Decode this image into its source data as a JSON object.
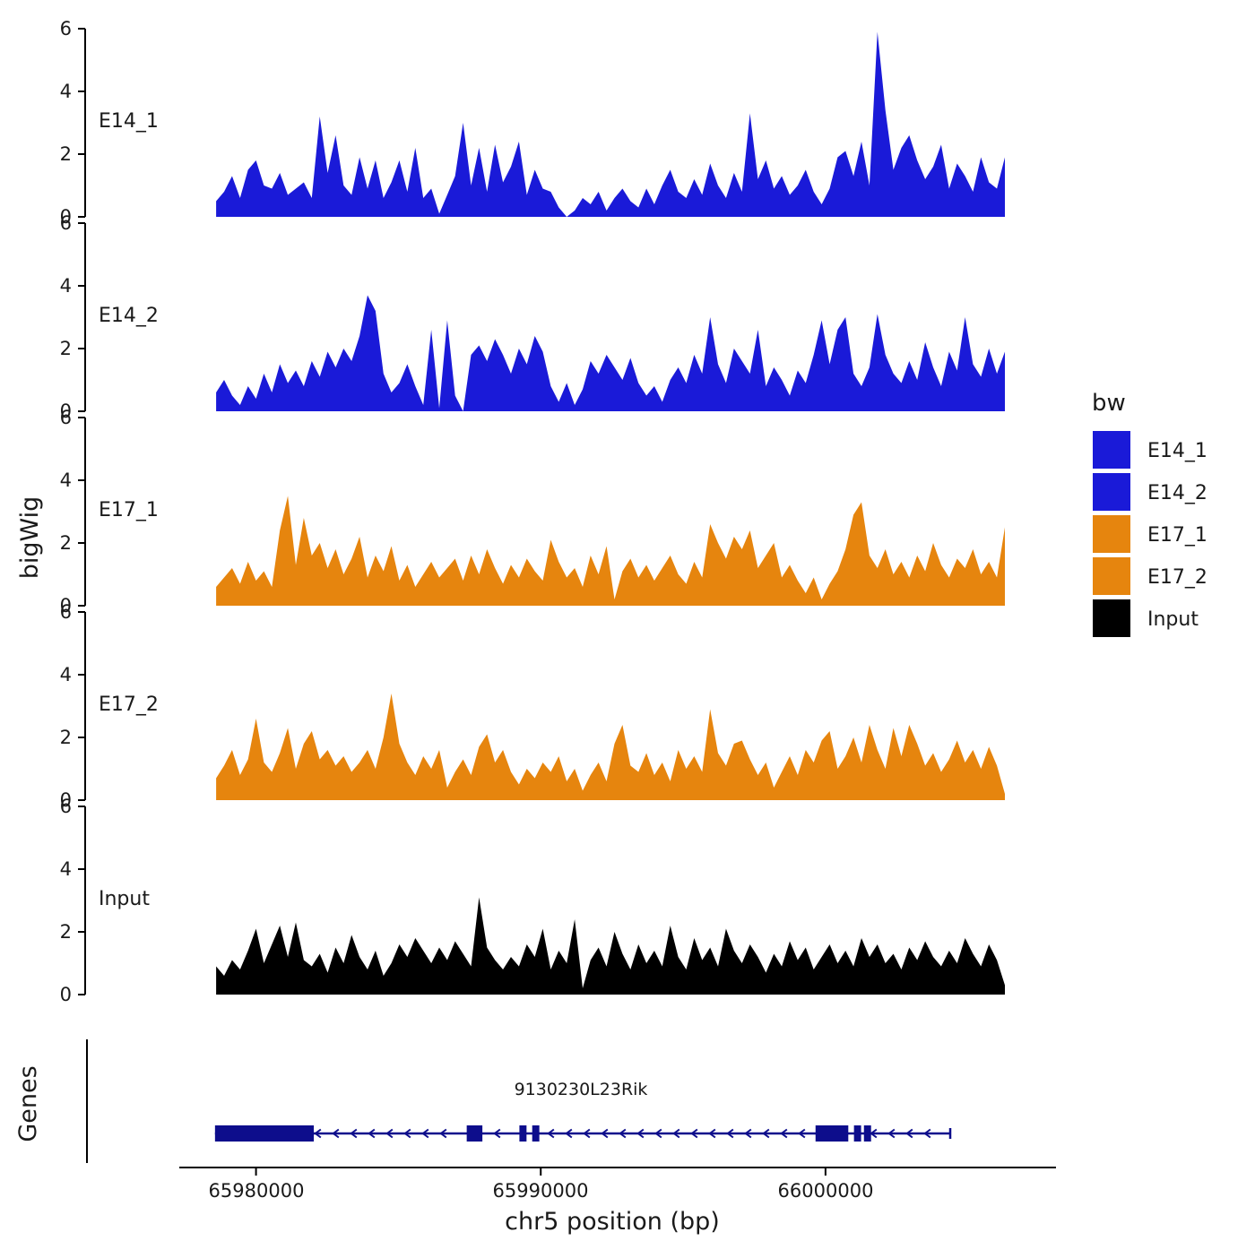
{
  "figure": {
    "background": "#ffffff"
  },
  "chart_data": {
    "type": "area",
    "title": "",
    "ylabel": "bigWig",
    "xlabel": "chr5 position (bp)",
    "ylim": [
      0,
      6
    ],
    "yticks": [
      0,
      2,
      4,
      6
    ],
    "x_range": [
      65974000,
      66008000
    ],
    "data_range": [
      65978600,
      66006300
    ],
    "grid": false,
    "x_axis": {
      "ticks": [
        65980000,
        65990000,
        66000000
      ],
      "tick_labels": [
        "65980000",
        "65990000",
        "66000000"
      ]
    },
    "legend": {
      "title": "bw",
      "position": "right",
      "entries": [
        {
          "label": "E14_1",
          "color": "#1a1ad8"
        },
        {
          "label": "E14_2",
          "color": "#1a1ad8"
        },
        {
          "label": "E17_1",
          "color": "#e6850e"
        },
        {
          "label": "E17_2",
          "color": "#e6850e"
        },
        {
          "label": "Input",
          "color": "#000000"
        }
      ]
    },
    "tracks": [
      {
        "name": "E14_1",
        "color": "#1a1ad8",
        "values": [
          0.5,
          0.8,
          1.3,
          0.6,
          1.5,
          1.8,
          1.0,
          0.9,
          1.4,
          0.7,
          0.9,
          1.1,
          0.6,
          3.2,
          1.4,
          2.6,
          1.0,
          0.7,
          1.9,
          0.9,
          1.8,
          0.6,
          1.1,
          1.8,
          0.8,
          2.2,
          0.6,
          0.9,
          0.1,
          0.7,
          1.3,
          3.0,
          1.0,
          2.2,
          0.8,
          2.3,
          1.1,
          1.6,
          2.4,
          0.7,
          1.5,
          0.9,
          0.8,
          0.3,
          0.0,
          0.2,
          0.6,
          0.4,
          0.8,
          0.2,
          0.6,
          0.9,
          0.5,
          0.3,
          0.9,
          0.4,
          1.0,
          1.5,
          0.8,
          0.6,
          1.2,
          0.7,
          1.7,
          1.0,
          0.6,
          1.4,
          0.8,
          3.3,
          1.2,
          1.8,
          0.9,
          1.3,
          0.7,
          1.0,
          1.5,
          0.8,
          0.4,
          0.9,
          1.9,
          2.1,
          1.3,
          2.4,
          1.0,
          5.9,
          3.4,
          1.5,
          2.2,
          2.6,
          1.8,
          1.2,
          1.6,
          2.3,
          0.9,
          1.7,
          1.3,
          0.8,
          1.9,
          1.1,
          0.9,
          1.9
        ]
      },
      {
        "name": "E14_2",
        "color": "#1a1ad8",
        "values": [
          0.6,
          1.0,
          0.5,
          0.2,
          0.8,
          0.4,
          1.2,
          0.6,
          1.5,
          0.9,
          1.3,
          0.8,
          1.6,
          1.1,
          1.9,
          1.4,
          2.0,
          1.6,
          2.4,
          3.7,
          3.2,
          1.2,
          0.6,
          0.9,
          1.5,
          0.8,
          0.2,
          2.6,
          0.1,
          2.9,
          0.5,
          0.0,
          1.8,
          2.1,
          1.6,
          2.3,
          1.8,
          1.2,
          2.0,
          1.5,
          2.4,
          1.9,
          0.8,
          0.3,
          0.9,
          0.2,
          0.7,
          1.6,
          1.2,
          1.8,
          1.4,
          1.0,
          1.7,
          0.9,
          0.5,
          0.8,
          0.3,
          1.0,
          1.4,
          0.9,
          1.8,
          1.2,
          3.0,
          1.5,
          0.9,
          2.0,
          1.6,
          1.2,
          2.6,
          0.8,
          1.4,
          1.0,
          0.5,
          1.3,
          0.9,
          1.8,
          2.9,
          1.5,
          2.6,
          3.0,
          1.2,
          0.8,
          1.4,
          3.1,
          1.8,
          1.2,
          0.9,
          1.6,
          1.0,
          2.2,
          1.4,
          0.8,
          1.9,
          1.3,
          3.0,
          1.5,
          1.1,
          2.0,
          1.2,
          1.9
        ]
      },
      {
        "name": "E17_1",
        "color": "#e6850e",
        "values": [
          0.6,
          0.9,
          1.2,
          0.7,
          1.4,
          0.8,
          1.1,
          0.6,
          2.4,
          3.5,
          1.3,
          2.8,
          1.6,
          2.0,
          1.2,
          1.8,
          1.0,
          1.5,
          2.2,
          0.9,
          1.6,
          1.1,
          1.9,
          0.8,
          1.3,
          0.6,
          1.0,
          1.4,
          0.9,
          1.2,
          1.5,
          0.8,
          1.6,
          1.0,
          1.8,
          1.2,
          0.7,
          1.3,
          0.9,
          1.5,
          1.1,
          0.8,
          2.1,
          1.4,
          0.9,
          1.2,
          0.6,
          1.6,
          1.0,
          1.9,
          0.2,
          1.1,
          1.5,
          0.9,
          1.3,
          0.8,
          1.2,
          1.6,
          1.0,
          0.7,
          1.4,
          0.9,
          2.6,
          2.0,
          1.5,
          2.2,
          1.8,
          2.4,
          1.2,
          1.6,
          2.0,
          0.9,
          1.3,
          0.8,
          0.4,
          0.9,
          0.2,
          0.7,
          1.1,
          1.8,
          2.9,
          3.3,
          1.6,
          1.2,
          1.8,
          1.0,
          1.4,
          0.9,
          1.6,
          1.1,
          2.0,
          1.3,
          0.9,
          1.5,
          1.2,
          1.8,
          1.0,
          1.4,
          0.9,
          2.5
        ]
      },
      {
        "name": "E17_2",
        "color": "#e6850e",
        "values": [
          0.7,
          1.1,
          1.6,
          0.8,
          1.3,
          2.6,
          1.2,
          0.9,
          1.5,
          2.3,
          1.0,
          1.8,
          2.2,
          1.3,
          1.6,
          1.1,
          1.4,
          0.9,
          1.2,
          1.6,
          1.0,
          2.0,
          3.4,
          1.8,
          1.2,
          0.8,
          1.4,
          1.0,
          1.6,
          0.4,
          0.9,
          1.3,
          0.8,
          1.7,
          2.1,
          1.2,
          1.6,
          0.9,
          0.5,
          1.0,
          0.7,
          1.2,
          0.9,
          1.4,
          0.6,
          1.0,
          0.3,
          0.8,
          1.2,
          0.6,
          1.8,
          2.4,
          1.1,
          0.9,
          1.5,
          0.8,
          1.2,
          0.6,
          1.6,
          1.0,
          1.4,
          0.9,
          2.9,
          1.5,
          1.1,
          1.8,
          1.9,
          1.3,
          0.8,
          1.2,
          0.4,
          0.9,
          1.4,
          0.8,
          1.6,
          1.2,
          1.9,
          2.2,
          1.0,
          1.4,
          2.0,
          1.2,
          2.4,
          1.6,
          1.0,
          2.3,
          1.4,
          2.4,
          1.8,
          1.1,
          1.5,
          0.9,
          1.3,
          1.9,
          1.2,
          1.6,
          1.0,
          1.7,
          1.1,
          0.2
        ]
      },
      {
        "name": "Input",
        "color": "#000000",
        "values": [
          0.9,
          0.6,
          1.1,
          0.8,
          1.4,
          2.1,
          1.0,
          1.6,
          2.2,
          1.2,
          2.3,
          1.1,
          0.9,
          1.3,
          0.7,
          1.5,
          1.0,
          1.9,
          1.2,
          0.8,
          1.4,
          0.6,
          1.0,
          1.6,
          1.2,
          1.8,
          1.4,
          1.0,
          1.5,
          1.1,
          1.7,
          1.3,
          0.9,
          3.1,
          1.5,
          1.1,
          0.8,
          1.2,
          0.9,
          1.6,
          1.2,
          2.1,
          0.8,
          1.4,
          1.0,
          2.4,
          0.2,
          1.1,
          1.5,
          0.9,
          2.0,
          1.3,
          0.8,
          1.6,
          1.0,
          1.4,
          0.9,
          2.2,
          1.2,
          0.8,
          1.8,
          1.1,
          1.5,
          0.9,
          2.1,
          1.4,
          1.0,
          1.6,
          1.2,
          0.7,
          1.3,
          0.9,
          1.7,
          1.1,
          1.5,
          0.8,
          1.2,
          1.6,
          1.0,
          1.4,
          0.9,
          1.8,
          1.2,
          1.6,
          1.0,
          1.3,
          0.8,
          1.5,
          1.1,
          1.7,
          1.2,
          0.9,
          1.4,
          1.0,
          1.8,
          1.3,
          0.9,
          1.6,
          1.1,
          0.3
        ]
      }
    ],
    "genes_panel": {
      "ylabel": "Genes",
      "gene": {
        "name": "9130230L23Rik",
        "strand": "-",
        "start": 65978560,
        "end": 66004380,
        "color": "#0d0d8c",
        "exons": [
          [
            65978560,
            65982030
          ],
          [
            65987400,
            65987950
          ],
          [
            65989250,
            65989500
          ],
          [
            65989700,
            65989950
          ],
          [
            65999650,
            66000800
          ],
          [
            66001000,
            66001250
          ],
          [
            66001350,
            66001600
          ]
        ]
      }
    }
  }
}
